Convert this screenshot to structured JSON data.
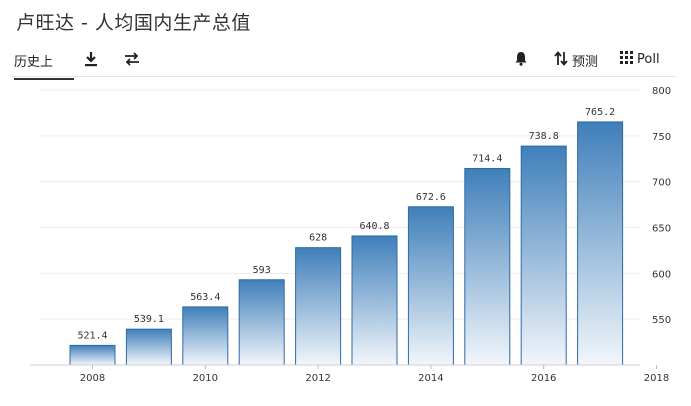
{
  "page": {
    "title": "卢旺达 - 人均国内生产总值"
  },
  "toolbar": {
    "history_label": "历史上",
    "forecast_label": "预测",
    "poll_label": "Poll",
    "icons": [
      "download-icon",
      "swap-icon",
      "bell-icon",
      "sort-icon",
      "grid-icon"
    ]
  },
  "chart_data": {
    "type": "bar",
    "categories": [
      "2008",
      "2009",
      "2010",
      "2011",
      "2012",
      "2013",
      "2014",
      "2015",
      "2016",
      "2017"
    ],
    "values": [
      521.4,
      539.1,
      563.4,
      593,
      628,
      640.8,
      672.6,
      714.4,
      738.8,
      765.2
    ],
    "value_labels": [
      "521.4",
      "539.1",
      "563.4",
      "593",
      "628",
      "640.8",
      "672.6",
      "714.4",
      "738.8",
      "765.2"
    ],
    "x_tick_labels": [
      "2008",
      "2010",
      "2012",
      "2014",
      "2016",
      "2018"
    ],
    "x_tick_years": [
      2008,
      2010,
      2012,
      2014,
      2016,
      2018
    ],
    "y_tick_labels": [
      "550",
      "600",
      "650",
      "700",
      "750",
      "800"
    ],
    "y_tick_values": [
      550,
      600,
      650,
      700,
      750,
      800
    ],
    "ylim": [
      500,
      800
    ],
    "yaxis_position": "right",
    "grid": true,
    "colors": {
      "bar_top": "#3f7fba",
      "bar_bottom": "#f2f6fb",
      "bar_stroke": "#2f6aa3"
    }
  }
}
